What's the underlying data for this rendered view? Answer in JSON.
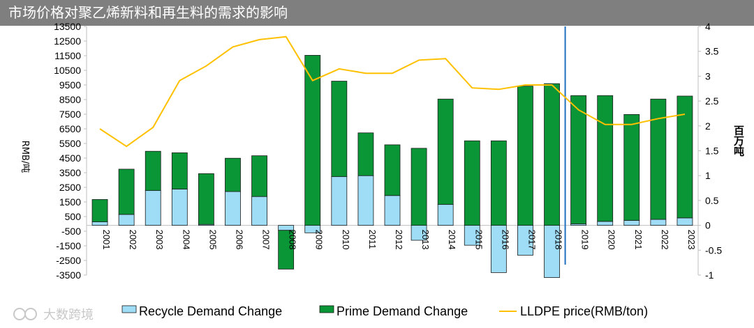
{
  "title": "市场价格对聚乙烯新料和再生料的需求的影响",
  "chart_data": {
    "type": "bar+line",
    "title": "市场价格对聚乙烯新料和再生料的需求的影响",
    "categories": [
      "2001",
      "2002",
      "2003",
      "2004",
      "2005",
      "2006",
      "2007",
      "2008",
      "2009",
      "2010",
      "2011",
      "2012",
      "2013",
      "2014",
      "2015",
      "2016",
      "2017",
      "2018",
      "2019",
      "2020",
      "2021",
      "2022",
      "2023"
    ],
    "left_axis": {
      "label": "RMB/吨",
      "ylim": [
        -3500,
        13500
      ],
      "ticks": [
        "13500",
        "12500",
        "11500",
        "10500",
        "9500",
        "8500",
        "7500",
        "6500",
        "5500",
        "4500",
        "3500",
        "2500",
        "1500",
        "500",
        "-500",
        "-1500",
        "-2500",
        "-3500"
      ]
    },
    "right_axis": {
      "label": "百万吨",
      "ylim": [
        -1,
        4
      ],
      "ticks": [
        "4",
        "3.5",
        "3",
        "2.5",
        "2",
        "1.5",
        "1",
        "0.5",
        "0",
        "-0.5",
        "-1"
      ]
    },
    "series": [
      {
        "name": "Recycle Demand Change",
        "kind": "stacked-bar",
        "color": "#9fdcf5",
        "values": [
          0.07,
          0.22,
          0.7,
          0.73,
          0.02,
          0.68,
          0.58,
          -0.1,
          -0.15,
          0.98,
          1.0,
          0.6,
          -0.3,
          0.42,
          -0.4,
          -0.95,
          -0.6,
          -1.05,
          0.03,
          0.08,
          0.1,
          0.12,
          0.15
        ]
      },
      {
        "name": "Prime Demand Change",
        "kind": "stacked-bar",
        "color": "#0a9637",
        "values": [
          0.45,
          0.91,
          0.79,
          0.73,
          1.02,
          0.67,
          0.82,
          -0.78,
          3.42,
          1.92,
          0.86,
          1.02,
          1.55,
          2.12,
          1.7,
          1.7,
          2.8,
          2.85,
          2.58,
          2.53,
          2.13,
          2.42,
          2.45
        ]
      },
      {
        "name": "LLDPE price(RMB/ton)",
        "kind": "line",
        "color": "#ffc000",
        "values": [
          6500,
          5300,
          6600,
          9800,
          10800,
          12100,
          12600,
          12800,
          9800,
          10600,
          10300,
          10300,
          11200,
          11300,
          9300,
          9200,
          9500,
          9500,
          7800,
          6800,
          6800,
          7200,
          7500
        ]
      }
    ],
    "legend": [
      "Recycle Demand Change",
      "Prime Demand Change",
      "LLDPE price(RMB/ton)"
    ],
    "divider_after_category": "2018"
  },
  "watermark": "大数跨境"
}
